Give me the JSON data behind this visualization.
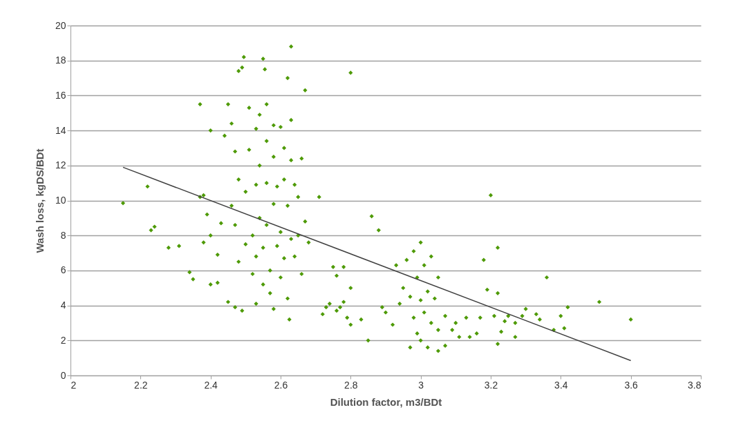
{
  "chart_data": {
    "type": "scatter",
    "xlabel": "Dilution factor, m3/BDt",
    "ylabel": "Wash loss, kgDS/BDt",
    "xlim": [
      2,
      3.8
    ],
    "xticks": [
      2,
      2.2,
      2.4,
      2.6,
      2.8,
      3,
      3.2,
      3.4,
      3.6,
      3.8
    ],
    "ylim": [
      0,
      20
    ],
    "yticks": [
      0,
      2,
      4,
      6,
      8,
      10,
      12,
      14,
      16,
      18,
      20
    ],
    "grid": "y",
    "series": [
      {
        "marker": "diamond",
        "color": "#4e9a06",
        "x": [
          2.15,
          2.22,
          2.23,
          2.24,
          2.28,
          2.31,
          2.34,
          2.35,
          2.37,
          2.37,
          2.38,
          2.38,
          2.39,
          2.4,
          2.4,
          2.4,
          2.42,
          2.42,
          2.43,
          2.44,
          2.45,
          2.45,
          2.46,
          2.47,
          2.48,
          2.49,
          2.495,
          2.46,
          2.47,
          2.47,
          2.48,
          2.48,
          2.49,
          2.5,
          2.5,
          2.51,
          2.51,
          2.52,
          2.52,
          2.53,
          2.53,
          2.53,
          2.53,
          2.54,
          2.54,
          2.54,
          2.55,
          2.555,
          2.55,
          2.55,
          2.56,
          2.56,
          2.56,
          2.56,
          2.57,
          2.57,
          2.58,
          2.58,
          2.58,
          2.58,
          2.59,
          2.59,
          2.6,
          2.6,
          2.6,
          2.61,
          2.61,
          2.61,
          2.62,
          2.62,
          2.62,
          2.625,
          2.63,
          2.63,
          2.63,
          2.63,
          2.64,
          2.64,
          2.65,
          2.65,
          2.66,
          2.66,
          2.67,
          2.67,
          2.68,
          2.71,
          2.72,
          2.73,
          2.74,
          2.75,
          2.76,
          2.76,
          2.77,
          2.78,
          2.78,
          2.79,
          2.8,
          2.8,
          2.8,
          2.83,
          2.85,
          2.86,
          2.88,
          2.89,
          2.9,
          2.92,
          2.93,
          2.94,
          2.95,
          2.96,
          2.97,
          2.97,
          2.98,
          2.98,
          2.99,
          2.99,
          3,
          3,
          3,
          3.01,
          3.01,
          3.02,
          3.02,
          3.03,
          3.03,
          3.04,
          3.05,
          3.05,
          3.05,
          3.07,
          3.07,
          3.09,
          3.1,
          3.11,
          3.13,
          3.14,
          3.16,
          3.17,
          3.18,
          3.19,
          3.2,
          3.21,
          3.22,
          3.22,
          3.22,
          3.23,
          3.24,
          3.25,
          3.27,
          3.27,
          3.29,
          3.3,
          3.33,
          3.34,
          3.36,
          3.38,
          3.4,
          3.41,
          3.42,
          3.51,
          3.6
        ],
        "values": [
          9.85,
          10.8,
          8.3,
          8.5,
          7.3,
          7.4,
          5.9,
          5.5,
          15.5,
          10.2,
          10.3,
          7.6,
          9.2,
          14,
          8,
          5.2,
          5.3,
          6.9,
          8.7,
          13.7,
          15.5,
          4.2,
          14.4,
          12.8,
          17.4,
          17.6,
          18.2,
          9.7,
          8.6,
          3.9,
          6.5,
          11.2,
          3.7,
          10.5,
          7.5,
          15.3,
          12.9,
          8,
          5.8,
          14.1,
          10.9,
          6.8,
          4.1,
          14.9,
          12,
          9,
          18.1,
          17.5,
          7.3,
          5.2,
          15.5,
          13.4,
          11,
          8.6,
          6,
          4.7,
          14.3,
          12.5,
          9.8,
          3.8,
          10.8,
          7.4,
          14.2,
          8.2,
          5.6,
          13,
          11.2,
          6.7,
          17,
          9.7,
          4.4,
          3.2,
          18.8,
          14.6,
          12.3,
          7.8,
          10.9,
          6.8,
          10.2,
          8,
          12.4,
          5.8,
          16.3,
          8.8,
          7.6,
          10.2,
          3.5,
          3.9,
          4.1,
          6.2,
          5.7,
          3.7,
          3.9,
          6.2,
          4.2,
          3.3,
          17.3,
          2.9,
          5,
          3.2,
          2,
          9.1,
          8.3,
          3.9,
          3.6,
          2.9,
          6.3,
          4.1,
          5,
          6.6,
          4.5,
          1.6,
          7.1,
          3.3,
          5.6,
          2.4,
          7.6,
          4.3,
          2,
          6.3,
          3.6,
          4.8,
          1.6,
          6.8,
          3,
          4.4,
          5.6,
          2.6,
          1.4,
          3.4,
          1.7,
          2.6,
          3,
          2.2,
          3.3,
          2.2,
          2.4,
          3.3,
          6.6,
          4.9,
          10.3,
          3.4,
          7.3,
          4.7,
          1.8,
          2.5,
          3.1,
          3.4,
          2.2,
          3,
          3.4,
          3.8,
          3.5,
          3.2,
          5.6,
          2.6,
          3.4,
          2.7,
          3.9,
          4.2,
          3.2
        ]
      },
      {
        "type": "line",
        "color": "#404040",
        "x": [
          2.15,
          3.6
        ],
        "values": [
          11.9,
          0.85
        ]
      }
    ]
  }
}
